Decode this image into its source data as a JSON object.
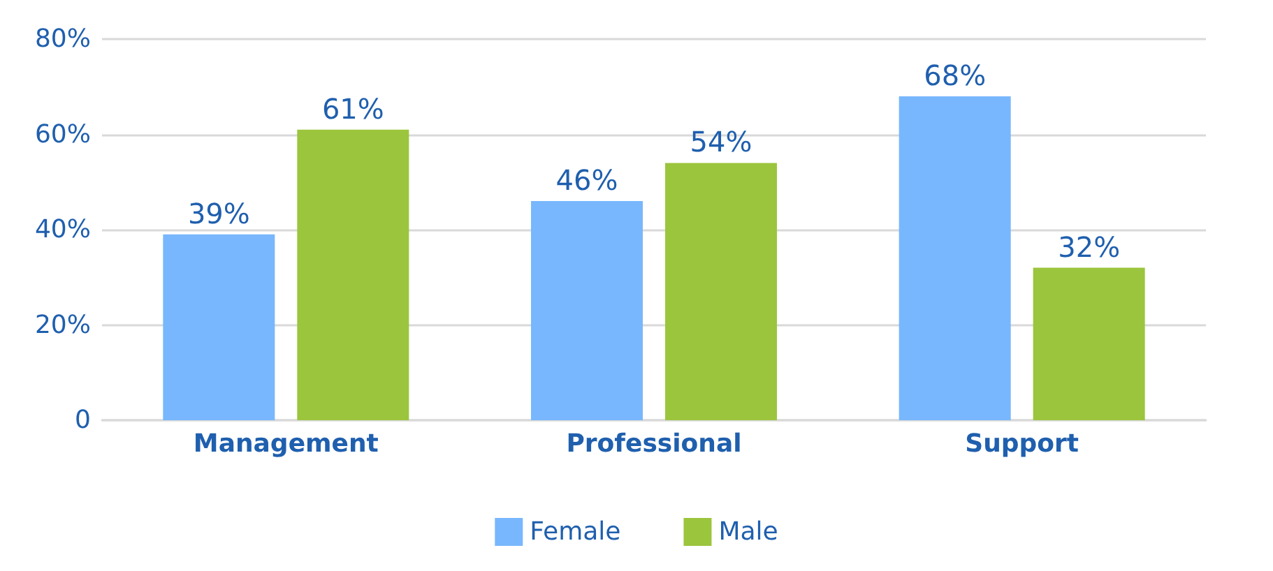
{
  "chart_data": {
    "type": "bar",
    "categories": [
      "Management",
      "Professional",
      "Support"
    ],
    "series": [
      {
        "name": "Female",
        "color": "#78b7fd",
        "values": [
          39,
          46,
          68
        ],
        "value_labels": [
          "39%",
          "46%",
          "68%"
        ]
      },
      {
        "name": "Male",
        "color": "#9bc53d",
        "values": [
          61,
          54,
          32
        ],
        "value_labels": [
          "61%",
          "54%",
          "32%"
        ]
      }
    ],
    "ylim": [
      0,
      80
    ],
    "yticks": [
      0,
      {
        "value": 20,
        "label": "20%"
      },
      {
        "value": 40,
        "label": "40%"
      },
      {
        "value": 60,
        "label": "60%"
      },
      {
        "value": 80,
        "label": "80%"
      }
    ],
    "grid": "y",
    "legend": "bottom"
  }
}
